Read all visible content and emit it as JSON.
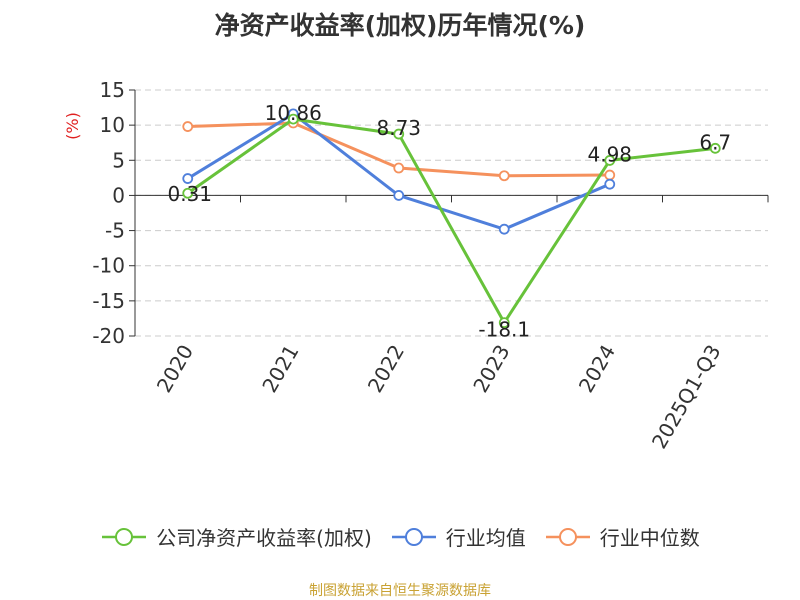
{
  "chart_data": {
    "type": "line",
    "title": "净资产收益率(加权)历年情况(%)",
    "ylabel": "(%)",
    "xlabel": "",
    "categories": [
      "2020",
      "2021",
      "2022",
      "2023",
      "2024",
      "2025Q1-Q3"
    ],
    "ylim": [
      -20,
      15
    ],
    "yticks": [
      15,
      10,
      5,
      0,
      -5,
      -10,
      -15,
      -20
    ],
    "grid": true,
    "legend_position": "bottom",
    "series": [
      {
        "name": "公司净资产收益率(加权)",
        "color": "#67c23a",
        "values": [
          0.31,
          10.86,
          8.73,
          -18.1,
          4.98,
          6.7
        ],
        "labels": [
          "0.31",
          "10.86",
          "8.73",
          "-18.1",
          "4.98",
          "6.7"
        ]
      },
      {
        "name": "行业均值",
        "color": "#4f7fdb",
        "values": [
          2.4,
          11.6,
          0.0,
          -4.8,
          1.6,
          null
        ]
      },
      {
        "name": "行业中位数",
        "color": "#f5915d",
        "values": [
          9.8,
          10.3,
          3.9,
          2.8,
          2.9,
          null
        ]
      }
    ]
  },
  "source": "制图数据来自恒生聚源数据库"
}
